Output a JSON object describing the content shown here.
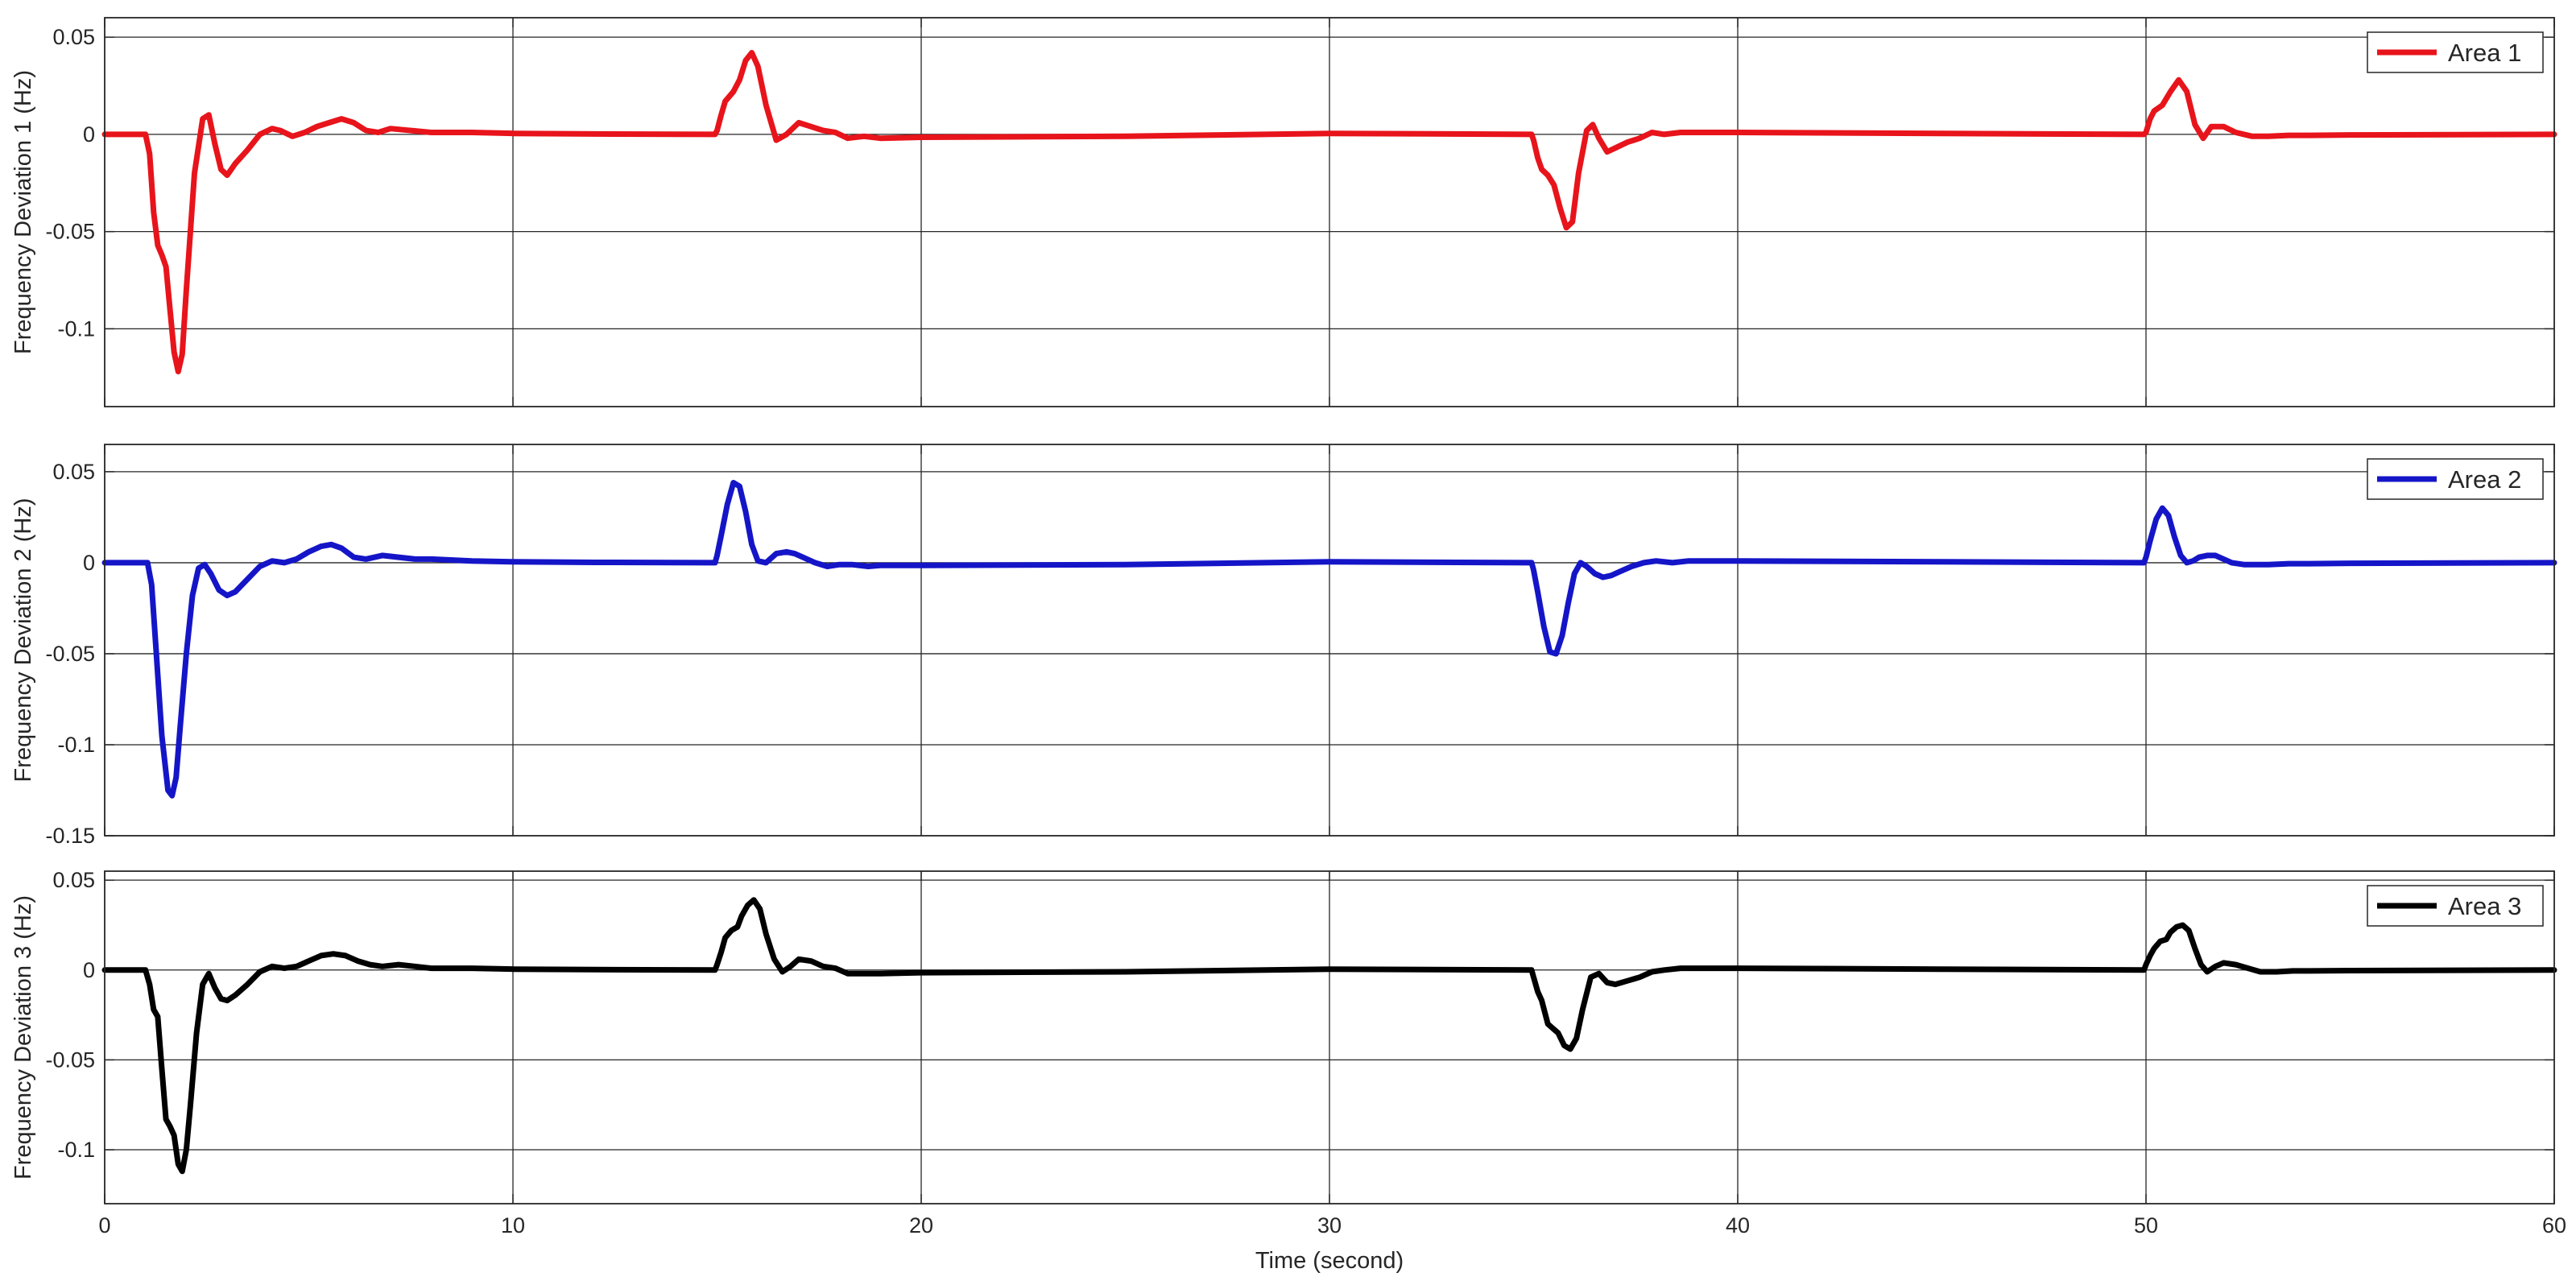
{
  "chart_data": [
    {
      "type": "line",
      "xlabel": "",
      "ylabel": "Frequency Deviation 1 (Hz)",
      "xlim": [
        0,
        60
      ],
      "ylim": [
        -0.14,
        0.06
      ],
      "xticks": [
        0,
        10,
        20,
        30,
        40,
        50,
        60
      ],
      "xtick_labels": [
        "0",
        "10",
        "20",
        "30",
        "40",
        "50",
        "60"
      ],
      "xtick_labels_visible": false,
      "yticks": [
        -0.1,
        -0.05,
        0,
        0.05
      ],
      "ytick_labels": [
        "-0.1",
        "-0.05",
        "0",
        "0.05"
      ],
      "grid": true,
      "legend": "top-right",
      "series": [
        {
          "name": "Area 1",
          "color": "#e8141b",
          "x": [
            0,
            1.0,
            1.1,
            1.2,
            1.3,
            1.4,
            1.5,
            1.6,
            1.7,
            1.8,
            1.9,
            2.0,
            2.2,
            2.4,
            2.55,
            2.7,
            2.85,
            3.0,
            3.2,
            3.5,
            3.8,
            4.1,
            4.3,
            4.6,
            4.9,
            5.2,
            5.5,
            5.8,
            6.1,
            6.4,
            6.7,
            7.0,
            7.5,
            8.0,
            9.0,
            10.0,
            12.0,
            14.0,
            14.95,
            15.0,
            15.1,
            15.2,
            15.4,
            15.55,
            15.7,
            15.85,
            16.0,
            16.2,
            16.45,
            16.7,
            17.0,
            17.3,
            17.6,
            17.9,
            18.2,
            18.6,
            19.0,
            20.0,
            25.0,
            30.0,
            34.95,
            35.0,
            35.1,
            35.2,
            35.35,
            35.5,
            35.65,
            35.8,
            35.95,
            36.1,
            36.3,
            36.45,
            36.6,
            36.8,
            37.0,
            37.3,
            37.6,
            37.9,
            38.2,
            38.6,
            39.0,
            40.0,
            45.0,
            49.95,
            50.0,
            50.1,
            50.2,
            50.4,
            50.6,
            50.8,
            51.0,
            51.2,
            51.4,
            51.6,
            51.9,
            52.2,
            52.6,
            53.0,
            53.5,
            54.0,
            55.0,
            60.0
          ],
          "values": [
            0,
            0,
            -0.01,
            -0.04,
            -0.057,
            -0.062,
            -0.068,
            -0.09,
            -0.112,
            -0.122,
            -0.113,
            -0.08,
            -0.02,
            0.008,
            0.01,
            -0.005,
            -0.018,
            -0.021,
            -0.015,
            -0.008,
            0.0,
            0.003,
            0.002,
            -0.001,
            0.001,
            0.004,
            0.006,
            0.008,
            0.006,
            0.002,
            0.001,
            0.003,
            0.002,
            0.001,
            0.001,
            0.0005,
            0.0002,
            0.0001,
            0,
            0.002,
            0.01,
            0.017,
            0.022,
            0.028,
            0.038,
            0.042,
            0.035,
            0.015,
            -0.003,
            0.0,
            0.006,
            0.004,
            0.002,
            0.001,
            -0.002,
            -0.001,
            -0.002,
            -0.0015,
            -0.001,
            0.0005,
            0,
            -0.003,
            -0.012,
            -0.018,
            -0.021,
            -0.026,
            -0.038,
            -0.048,
            -0.045,
            -0.02,
            0.002,
            0.005,
            -0.002,
            -0.009,
            -0.007,
            -0.004,
            -0.002,
            0.001,
            0.0,
            0.001,
            0.001,
            0.001,
            0.0005,
            0,
            0.001,
            0.008,
            0.012,
            0.015,
            0.022,
            0.028,
            0.022,
            0.005,
            -0.002,
            0.004,
            0.004,
            0.001,
            -0.001,
            -0.001,
            -0.0005,
            -0.0005,
            -0.0003,
            0
          ]
        }
      ]
    },
    {
      "type": "line",
      "xlabel": "",
      "ylabel": "Frequency Deviation 2 (Hz)",
      "xlim": [
        0,
        60
      ],
      "ylim": [
        -0.15,
        0.065
      ],
      "xticks": [
        0,
        10,
        20,
        30,
        40,
        50,
        60
      ],
      "xtick_labels": [
        "0",
        "10",
        "20",
        "30",
        "40",
        "50",
        "60"
      ],
      "xtick_labels_visible": false,
      "yticks": [
        -0.15,
        -0.1,
        -0.05,
        0,
        0.05
      ],
      "ytick_labels": [
        "-0.15",
        "-0.1",
        "-0.05",
        "0",
        "0.05"
      ],
      "grid": true,
      "legend": "top-right",
      "series": [
        {
          "name": "Area 2",
          "color": "#1515c8",
          "x": [
            0,
            1.05,
            1.15,
            1.25,
            1.4,
            1.55,
            1.65,
            1.75,
            1.85,
            2.0,
            2.15,
            2.3,
            2.45,
            2.6,
            2.8,
            3.0,
            3.2,
            3.5,
            3.8,
            4.1,
            4.4,
            4.7,
            5.0,
            5.3,
            5.55,
            5.8,
            6.1,
            6.4,
            6.8,
            7.2,
            7.6,
            8.0,
            9.0,
            10.0,
            12.0,
            14.0,
            14.95,
            15.0,
            15.1,
            15.25,
            15.4,
            15.55,
            15.7,
            15.85,
            16.0,
            16.2,
            16.45,
            16.7,
            16.9,
            17.1,
            17.4,
            17.7,
            18.0,
            18.3,
            18.7,
            19.0,
            20.0,
            25.0,
            30.0,
            34.95,
            35.0,
            35.1,
            35.25,
            35.4,
            35.55,
            35.7,
            35.85,
            36.0,
            36.15,
            36.3,
            36.5,
            36.7,
            36.9,
            37.1,
            37.4,
            37.7,
            38.0,
            38.4,
            38.8,
            39.2,
            40.0,
            45.0,
            49.95,
            50.0,
            50.1,
            50.25,
            50.4,
            50.55,
            50.7,
            50.85,
            51.0,
            51.15,
            51.3,
            51.5,
            51.7,
            51.9,
            52.1,
            52.4,
            52.7,
            53.0,
            53.5,
            54.0,
            55.0,
            60.0
          ],
          "values": [
            0,
            0,
            -0.012,
            -0.045,
            -0.095,
            -0.125,
            -0.128,
            -0.118,
            -0.09,
            -0.05,
            -0.018,
            -0.003,
            -0.001,
            -0.006,
            -0.015,
            -0.018,
            -0.016,
            -0.009,
            -0.002,
            0.001,
            0.0,
            0.002,
            0.006,
            0.009,
            0.01,
            0.008,
            0.003,
            0.002,
            0.004,
            0.003,
            0.002,
            0.002,
            0.001,
            0.0005,
            0.0002,
            0.0001,
            0,
            0.004,
            0.015,
            0.032,
            0.044,
            0.042,
            0.028,
            0.01,
            0.001,
            0.0,
            0.005,
            0.006,
            0.005,
            0.003,
            0.0,
            -0.002,
            -0.001,
            -0.001,
            -0.002,
            -0.0015,
            -0.0015,
            -0.001,
            0.0005,
            0,
            -0.004,
            -0.016,
            -0.035,
            -0.049,
            -0.05,
            -0.04,
            -0.022,
            -0.006,
            0.0,
            -0.002,
            -0.006,
            -0.008,
            -0.007,
            -0.005,
            -0.002,
            0.0,
            0.001,
            0.0,
            0.001,
            0.001,
            0.001,
            0.0005,
            0,
            0.003,
            0.012,
            0.024,
            0.03,
            0.026,
            0.014,
            0.004,
            0.0,
            0.001,
            0.003,
            0.004,
            0.004,
            0.002,
            0.0,
            -0.001,
            -0.001,
            -0.001,
            -0.0005,
            -0.0005,
            -0.0003,
            0
          ]
        }
      ]
    },
    {
      "type": "line",
      "xlabel": "Time (second)",
      "ylabel": "Frequency Deviation 3 (Hz)",
      "xlim": [
        0,
        60
      ],
      "ylim": [
        -0.13,
        0.055
      ],
      "xticks": [
        0,
        10,
        20,
        30,
        40,
        50,
        60
      ],
      "xtick_labels": [
        "0",
        "10",
        "20",
        "30",
        "40",
        "50",
        "60"
      ],
      "xtick_labels_visible": true,
      "yticks": [
        -0.1,
        -0.05,
        0,
        0.05
      ],
      "ytick_labels": [
        "-0.1",
        "-0.05",
        "0",
        "0.05"
      ],
      "grid": true,
      "legend": "top-right",
      "series": [
        {
          "name": "Area 3",
          "color": "#000000",
          "x": [
            0,
            1.0,
            1.1,
            1.2,
            1.3,
            1.4,
            1.5,
            1.6,
            1.7,
            1.8,
            1.9,
            2.0,
            2.1,
            2.25,
            2.4,
            2.55,
            2.7,
            2.85,
            3.0,
            3.2,
            3.5,
            3.8,
            4.1,
            4.4,
            4.7,
            5.0,
            5.3,
            5.6,
            5.9,
            6.2,
            6.5,
            6.8,
            7.2,
            7.6,
            8.0,
            9.0,
            10.0,
            12.0,
            14.0,
            14.95,
            15.0,
            15.1,
            15.2,
            15.35,
            15.5,
            15.6,
            15.75,
            15.9,
            16.05,
            16.2,
            16.4,
            16.6,
            16.8,
            17.0,
            17.3,
            17.6,
            17.9,
            18.2,
            18.6,
            19.0,
            20.0,
            25.0,
            30.0,
            34.95,
            35.0,
            35.1,
            35.2,
            35.35,
            35.5,
            35.6,
            35.75,
            35.9,
            36.05,
            36.2,
            36.4,
            36.6,
            36.8,
            37.0,
            37.3,
            37.6,
            37.9,
            38.2,
            38.6,
            39.0,
            40.0,
            45.0,
            49.95,
            50.0,
            50.1,
            50.2,
            50.35,
            50.5,
            50.6,
            50.75,
            50.9,
            51.05,
            51.2,
            51.35,
            51.5,
            51.7,
            51.9,
            52.2,
            52.5,
            52.8,
            53.2,
            53.6,
            54.0,
            55.0,
            60.0
          ],
          "values": [
            0,
            0,
            -0.008,
            -0.022,
            -0.026,
            -0.055,
            -0.083,
            -0.087,
            -0.092,
            -0.108,
            -0.112,
            -0.1,
            -0.075,
            -0.035,
            -0.008,
            -0.002,
            -0.01,
            -0.016,
            -0.017,
            -0.014,
            -0.008,
            -0.001,
            0.002,
            0.001,
            0.002,
            0.005,
            0.008,
            0.009,
            0.008,
            0.005,
            0.003,
            0.002,
            0.003,
            0.002,
            0.001,
            0.001,
            0.0005,
            0.0002,
            0.0001,
            0,
            0.003,
            0.01,
            0.018,
            0.022,
            0.024,
            0.03,
            0.036,
            0.039,
            0.034,
            0.02,
            0.006,
            -0.001,
            0.002,
            0.006,
            0.005,
            0.002,
            0.001,
            -0.002,
            -0.002,
            -0.002,
            -0.0015,
            -0.001,
            0.0005,
            0,
            -0.004,
            -0.012,
            -0.017,
            -0.03,
            -0.033,
            -0.035,
            -0.042,
            -0.044,
            -0.038,
            -0.022,
            -0.004,
            -0.002,
            -0.007,
            -0.008,
            -0.006,
            -0.004,
            -0.001,
            0.0,
            0.001,
            0.001,
            0.001,
            0.0005,
            0,
            0.003,
            0.008,
            0.012,
            0.016,
            0.017,
            0.021,
            0.024,
            0.025,
            0.022,
            0.012,
            0.003,
            -0.001,
            0.002,
            0.004,
            0.003,
            0.001,
            -0.001,
            -0.001,
            -0.0005,
            -0.0005,
            -0.0003,
            0
          ]
        }
      ]
    }
  ]
}
